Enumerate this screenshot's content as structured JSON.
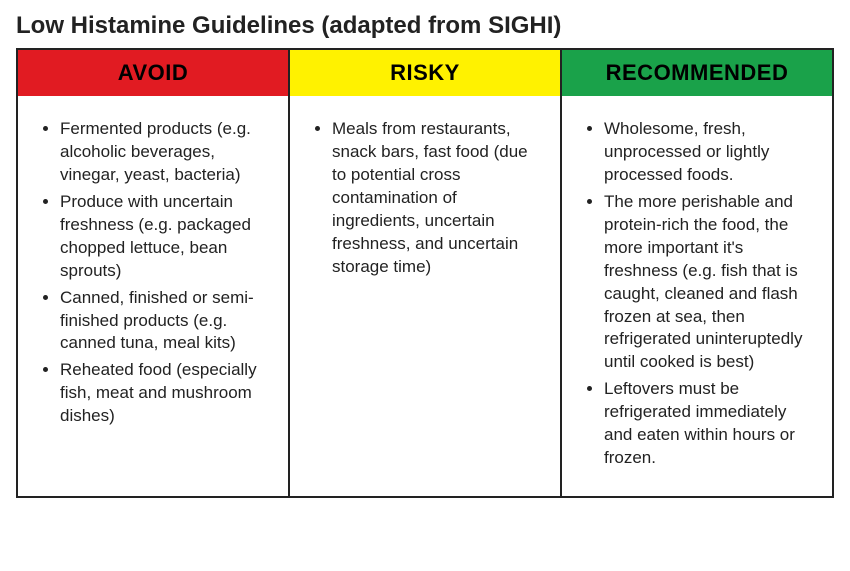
{
  "page": {
    "title": "Low Histamine Guidelines (adapted from SIGHI)"
  },
  "columns": [
    {
      "label": "AVOID",
      "header_bg": "#e11b22",
      "header_fg": "#000000",
      "items": [
        "Fermented products (e.g. alcoholic beverages, vinegar, yeast, bacteria)",
        "Produce with uncertain freshness (e.g. packaged chopped lettuce, bean sprouts)",
        "Canned, finished or semi-finished products (e.g. canned tuna, meal kits)",
        "Reheated food (especially fish, meat and mushroom dishes)"
      ]
    },
    {
      "label": "RISKY",
      "header_bg": "#fff200",
      "header_fg": "#000000",
      "items": [
        "Meals from restaurants, snack bars, fast food (due to potential cross contamination of ingredients, uncertain freshness, and uncertain storage time)"
      ]
    },
    {
      "label": "RECOMMENDED",
      "header_bg": "#1aa24a",
      "header_fg": "#000000",
      "items": [
        "Wholesome, fresh, unprocessed or lightly processed foods.",
        "The more perishable and protein-rich the food, the more important it's freshness (e.g. fish that is caught, cleaned and flash frozen at sea, then refrigerated uninteruptedly until cooked is best)",
        "Leftovers must be refrigerated immediately and eaten within hours or frozen."
      ]
    }
  ],
  "styling": {
    "border_color": "#222222",
    "background_color": "#ffffff",
    "title_fontsize": 24,
    "header_fontsize": 22,
    "body_fontsize": 17,
    "font_family": "Arial"
  }
}
